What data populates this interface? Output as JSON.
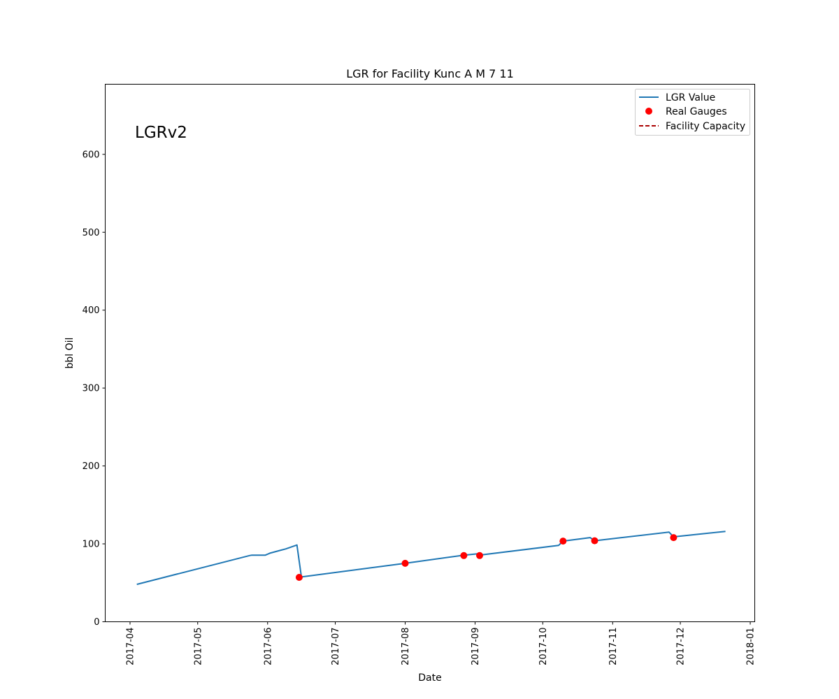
{
  "chart_data": {
    "type": "line",
    "title": "LGR for Facility Kunc A M 7 11",
    "xlabel": "Date",
    "ylabel": "bbl Oil",
    "annotation": "LGRv2",
    "ylim": [
      0,
      690
    ],
    "xlim": [
      "2017-03-21",
      "2018-01-03"
    ],
    "y_ticks": [
      0,
      100,
      200,
      300,
      400,
      500,
      600
    ],
    "x_ticks": [
      "2017-04-01",
      "2017-05-01",
      "2017-06-01",
      "2017-07-01",
      "2017-08-01",
      "2017-09-01",
      "2017-10-01",
      "2017-11-01",
      "2017-12-01",
      "2018-01-01"
    ],
    "x_tick_labels": [
      "2017-04",
      "2017-05",
      "2017-06",
      "2017-07",
      "2017-08",
      "2017-09",
      "2017-10",
      "2017-11",
      "2017-12",
      "2018-01"
    ],
    "legend": {
      "position": "top-right",
      "entries": [
        "LGR Value",
        "Real Gauges",
        "Facility Capacity"
      ]
    },
    "series": [
      {
        "name": "LGR Value",
        "kind": "line",
        "color": "#1f77b4",
        "points": [
          [
            "2017-04-04",
            48
          ],
          [
            "2017-05-24",
            85
          ],
          [
            "2017-05-25",
            85.5
          ],
          [
            "2017-05-31",
            85.5
          ],
          [
            "2017-06-02",
            88
          ],
          [
            "2017-06-07",
            92
          ],
          [
            "2017-06-09",
            93.5
          ],
          [
            "2017-06-14",
            98.5
          ],
          [
            "2017-06-16",
            57.5
          ],
          [
            "2017-08-01",
            75
          ],
          [
            "2017-08-27",
            85.5
          ],
          [
            "2017-09-03",
            87.5
          ],
          [
            "2017-09-04",
            86
          ],
          [
            "2017-10-08",
            98
          ],
          [
            "2017-10-10",
            103.5
          ],
          [
            "2017-10-22",
            108
          ],
          [
            "2017-10-24",
            104
          ],
          [
            "2017-11-26",
            115
          ],
          [
            "2017-11-28",
            109
          ],
          [
            "2017-12-21",
            116
          ]
        ]
      },
      {
        "name": "Real Gauges",
        "kind": "scatter",
        "color": "#ff0000",
        "points": [
          [
            "2017-06-15",
            57
          ],
          [
            "2017-08-01",
            75
          ],
          [
            "2017-08-27",
            85
          ],
          [
            "2017-09-03",
            85
          ],
          [
            "2017-10-10",
            103.5
          ],
          [
            "2017-10-24",
            104
          ],
          [
            "2017-11-28",
            108
          ]
        ]
      },
      {
        "name": "Facility Capacity",
        "kind": "line",
        "style": "dashed",
        "color": "#aa0000",
        "points": []
      }
    ]
  }
}
